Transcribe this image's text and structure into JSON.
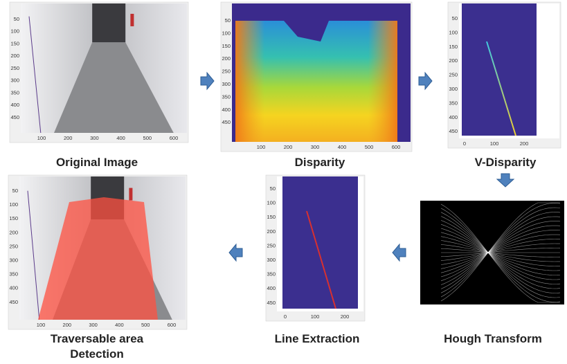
{
  "panels": [
    {
      "title": "Original Image",
      "xticks": [
        100,
        200,
        300,
        400,
        500,
        600
      ],
      "yticks": [
        50,
        100,
        150,
        200,
        250,
        300,
        350,
        400,
        450
      ]
    },
    {
      "title": "Disparity",
      "xticks": [
        100,
        200,
        300,
        400,
        500,
        600
      ],
      "yticks": [
        50,
        100,
        150,
        200,
        250,
        300,
        350,
        400,
        450
      ]
    },
    {
      "title": "V-Disparity",
      "xticks": [
        0,
        100,
        200
      ],
      "yticks": [
        50,
        100,
        150,
        200,
        250,
        300,
        350,
        400,
        450
      ]
    },
    {
      "title": "Hough Transform"
    },
    {
      "title": "Line Extraction",
      "xticks": [
        0,
        100,
        200
      ],
      "yticks": [
        50,
        100,
        150,
        200,
        250,
        300,
        350,
        400,
        450
      ]
    },
    {
      "title": "Traversable area Detection",
      "xticks": [
        100,
        200,
        300,
        400,
        500,
        600
      ],
      "yticks": [
        50,
        100,
        150,
        200,
        250,
        300,
        350,
        400,
        450
      ]
    }
  ]
}
